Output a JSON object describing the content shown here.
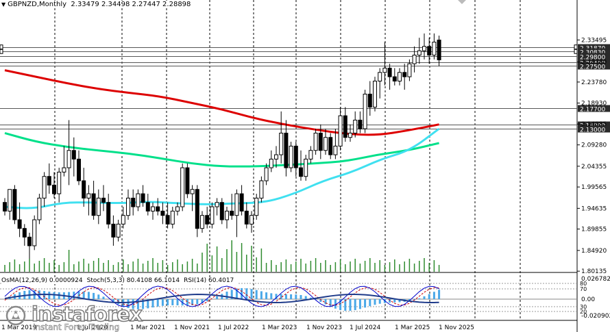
{
  "header": {
    "symbol": "GBPNZD,Monthly",
    "open": "2.33479",
    "high": "2.34498",
    "low": "2.27447",
    "close": "2.28898"
  },
  "indicators": {
    "osma": "OsMA(12,26,9) 0.0000924",
    "stoch": "Stoch(5,3,3) 80.4108 66.1014",
    "rsi": "RSI(14) 60.4017",
    "scale_top": "0.0267821",
    "scale_zero": "0.00",
    "scale_bottom": "-0.020902",
    "level_80": "80",
    "level_70": "70",
    "level_30": "30",
    "level_20": "20"
  },
  "watermark": {
    "brand": "instaforex",
    "tagline": "Instant Forex Trading"
  },
  "colors": {
    "bull_body": "#ffffff",
    "bear_body": "#000000",
    "ma200": "#dd0000",
    "ma144": "#00e08a",
    "ma50": "#40e0f0",
    "volume": "#2e8b2e",
    "osma": "#4aa8e8",
    "stoch_main": "#0000cc",
    "stoch_signal": "#cc0000",
    "rsi": "#1e3a8a"
  },
  "chart_data": {
    "type": "candlestick",
    "timeframe": "Monthly",
    "ylim": [
      1.8,
      2.375
    ],
    "y_ticks": [
      "2.33495",
      "2.28380",
      "2.23780",
      "2.18930",
      "2.14085",
      "2.09280",
      "2.04355",
      "1.99565",
      "1.94635",
      "1.89855",
      "1.84920",
      "1.80135"
    ],
    "x_ticks": [
      "1 Mar 2019",
      "1 Jul 2020",
      "1 Mar 2021",
      "1 Nov 2021",
      "1 Jul 2022",
      "1 Mar 2023",
      "1 Nov 2023",
      "1 Jul 2024",
      "1 Mar 2025",
      "1 Nov 2025"
    ],
    "price_levels": [
      {
        "label": "2.31870",
        "value": 2.3187
      },
      {
        "label": "2.30830",
        "value": 2.3083
      },
      {
        "label": "2.29800",
        "value": 2.298
      },
      {
        "label": "2.28400",
        "value": 2.284
      },
      {
        "label": "2.27500",
        "value": 2.275
      },
      {
        "label": "2.17700",
        "value": 2.177
      },
      {
        "label": "2.14000",
        "value": 2.14
      },
      {
        "label": "2.13000",
        "value": 2.13
      }
    ],
    "current_price": "2.28898",
    "candles": [
      [
        1.96,
        1.97,
        1.93,
        1.94
      ],
      [
        1.94,
        1.99,
        1.92,
        1.99
      ],
      [
        1.99,
        2.0,
        1.91,
        1.92
      ],
      [
        1.92,
        1.96,
        1.88,
        1.9
      ],
      [
        1.9,
        1.91,
        1.86,
        1.88
      ],
      [
        1.88,
        1.89,
        1.83,
        1.86
      ],
      [
        1.86,
        1.93,
        1.85,
        1.92
      ],
      [
        1.92,
        1.98,
        1.91,
        1.97
      ],
      [
        1.97,
        2.03,
        1.95,
        2.02
      ],
      [
        2.02,
        2.05,
        1.98,
        2.0
      ],
      [
        2.0,
        2.03,
        1.97,
        1.98
      ],
      [
        1.98,
        2.04,
        1.96,
        2.03
      ],
      [
        2.03,
        2.09,
        2.02,
        2.04
      ],
      [
        2.04,
        2.15,
        2.0,
        2.08
      ],
      [
        2.08,
        2.11,
        2.02,
        2.06
      ],
      [
        2.06,
        2.08,
        2.0,
        2.01
      ],
      [
        2.01,
        2.04,
        1.95,
        1.97
      ],
      [
        1.97,
        2.0,
        1.93,
        1.98
      ],
      [
        1.98,
        2.01,
        1.92,
        1.93
      ],
      [
        1.93,
        1.99,
        1.91,
        1.97
      ],
      [
        1.97,
        2.0,
        1.94,
        1.96
      ],
      [
        1.96,
        1.98,
        1.9,
        1.91
      ],
      [
        1.91,
        1.93,
        1.86,
        1.88
      ],
      [
        1.88,
        1.92,
        1.87,
        1.91
      ],
      [
        1.91,
        1.95,
        1.9,
        1.93
      ],
      [
        1.93,
        1.99,
        1.92,
        1.97
      ],
      [
        1.97,
        1.99,
        1.93,
        1.95
      ],
      [
        1.95,
        1.99,
        1.94,
        1.98
      ],
      [
        1.98,
        2.0,
        1.95,
        1.96
      ],
      [
        1.96,
        1.98,
        1.93,
        1.94
      ],
      [
        1.94,
        1.96,
        1.92,
        1.95
      ],
      [
        1.95,
        1.97,
        1.93,
        1.94
      ],
      [
        1.94,
        1.96,
        1.91,
        1.93
      ],
      [
        1.93,
        1.96,
        1.9,
        1.91
      ],
      [
        1.91,
        1.95,
        1.9,
        1.94
      ],
      [
        1.94,
        1.96,
        1.93,
        1.95
      ],
      [
        1.95,
        2.05,
        1.94,
        2.04
      ],
      [
        2.04,
        2.05,
        1.97,
        1.98
      ],
      [
        1.98,
        2.0,
        1.94,
        1.99
      ],
      [
        1.99,
        2.0,
        1.88,
        1.9
      ],
      [
        1.9,
        1.94,
        1.89,
        1.93
      ],
      [
        1.93,
        1.95,
        1.9,
        1.91
      ],
      [
        1.91,
        1.96,
        1.9,
        1.95
      ],
      [
        1.95,
        1.97,
        1.93,
        1.96
      ],
      [
        1.96,
        1.97,
        1.91,
        1.92
      ],
      [
        1.92,
        1.95,
        1.9,
        1.94
      ],
      [
        1.94,
        1.98,
        1.92,
        1.93
      ],
      [
        1.93,
        1.99,
        1.88,
        1.98
      ],
      [
        1.98,
        2.0,
        1.93,
        1.94
      ],
      [
        1.94,
        1.96,
        1.9,
        1.91
      ],
      [
        1.91,
        1.94,
        1.89,
        1.93
      ],
      [
        1.93,
        1.98,
        1.92,
        1.97
      ],
      [
        1.97,
        2.02,
        1.96,
        2.01
      ],
      [
        2.01,
        2.05,
        2.0,
        2.04
      ],
      [
        2.04,
        2.08,
        2.03,
        2.06
      ],
      [
        2.06,
        2.09,
        2.04,
        2.07
      ],
      [
        2.07,
        2.17,
        2.05,
        2.12
      ],
      [
        2.12,
        2.15,
        2.02,
        2.04
      ],
      [
        2.04,
        2.1,
        2.03,
        2.09
      ],
      [
        2.09,
        2.1,
        2.02,
        2.04
      ],
      [
        2.04,
        2.08,
        2.01,
        2.02
      ],
      [
        2.02,
        2.07,
        2.01,
        2.06
      ],
      [
        2.06,
        2.09,
        2.05,
        2.08
      ],
      [
        2.08,
        2.13,
        2.07,
        2.12
      ],
      [
        2.12,
        2.14,
        2.06,
        2.08
      ],
      [
        2.08,
        2.13,
        2.07,
        2.11
      ],
      [
        2.11,
        2.12,
        2.06,
        2.07
      ],
      [
        2.07,
        2.13,
        2.06,
        2.09
      ],
      [
        2.09,
        2.18,
        2.08,
        2.16
      ],
      [
        2.16,
        2.18,
        2.1,
        2.11
      ],
      [
        2.11,
        2.14,
        2.1,
        2.12
      ],
      [
        2.12,
        2.17,
        2.11,
        2.15
      ],
      [
        2.15,
        2.17,
        2.12,
        2.13
      ],
      [
        2.13,
        2.22,
        2.12,
        2.21
      ],
      [
        2.21,
        2.24,
        2.16,
        2.18
      ],
      [
        2.18,
        2.25,
        2.17,
        2.24
      ],
      [
        2.24,
        2.27,
        2.2,
        2.26
      ],
      [
        2.26,
        2.33,
        2.23,
        2.27
      ],
      [
        2.27,
        2.28,
        2.22,
        2.25
      ],
      [
        2.25,
        2.27,
        2.23,
        2.24
      ],
      [
        2.24,
        2.27,
        2.23,
        2.26
      ],
      [
        2.26,
        2.28,
        2.22,
        2.25
      ],
      [
        2.25,
        2.29,
        2.24,
        2.28
      ],
      [
        2.28,
        2.32,
        2.26,
        2.3
      ],
      [
        2.3,
        2.34,
        2.28,
        2.31
      ],
      [
        2.31,
        2.35,
        2.29,
        2.32
      ],
      [
        2.32,
        2.34,
        2.28,
        2.3
      ],
      [
        2.3,
        2.35,
        2.29,
        2.33
      ],
      [
        2.33479,
        2.34498,
        2.27447,
        2.28898
      ]
    ],
    "series": [
      {
        "values_ma200": [
          2.265,
          2.25,
          2.235,
          2.222,
          2.213,
          2.205,
          2.19,
          2.175,
          2.155,
          2.14,
          2.128,
          2.118,
          2.115,
          2.126,
          2.14
        ]
      },
      {
        "values_ma144": [
          2.12,
          2.1,
          2.088,
          2.08,
          2.073,
          2.062,
          2.05,
          2.043,
          2.043,
          2.046,
          2.05,
          2.055,
          2.07,
          2.08,
          2.097
        ]
      },
      {
        "values_ma50": [
          1.95,
          1.945,
          1.96,
          1.96,
          1.958,
          1.962,
          1.958,
          1.955,
          1.958,
          1.96,
          1.98,
          2.01,
          2.03,
          2.06,
          2.08,
          2.13
        ]
      }
    ]
  }
}
